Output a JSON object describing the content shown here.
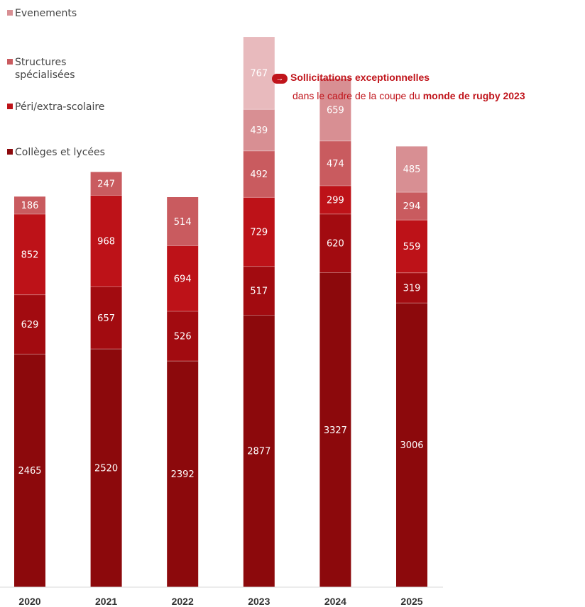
{
  "chart_data": {
    "type": "bar",
    "stacked": true,
    "categories": [
      "2020",
      "2021",
      "2022",
      "2023",
      "2024",
      "2025"
    ],
    "series": [
      {
        "name": "Collèges et lycées",
        "values": [
          2465,
          2520,
          2392,
          2877,
          3327,
          3006
        ],
        "color": "#8c090c"
      },
      {
        "name": "Péri/extra-scolaire",
        "values": [
          629,
          657,
          526,
          517,
          620,
          319
        ],
        "color": "#a20b10"
      },
      {
        "name": "Structures spécialisées",
        "values": [
          852,
          968,
          694,
          729,
          299,
          559
        ],
        "color": "#bd1218"
      },
      {
        "name": "Evenements",
        "values": [
          186,
          247,
          514,
          492,
          474,
          294
        ],
        "color": "#c95b5f"
      },
      {
        "name": "Evenements (2)",
        "values": [
          0,
          0,
          0,
          439,
          659,
          485
        ],
        "color": "#d88f93"
      },
      {
        "name": "Evenements (3)",
        "values": [
          0,
          0,
          0,
          767,
          0,
          0
        ],
        "color": "#e8babd"
      }
    ],
    "ylim": [
      0,
      6000
    ]
  },
  "legend": {
    "evenements": "Evenements",
    "structures_l1": "Structures",
    "structures_l2": "spécialisées",
    "peri": "Péri/extra-scolaire",
    "colleges": "Collèges et lycées",
    "colors": {
      "evenements": "#d88f93",
      "structures": "#c95b5f",
      "peri": "#bd1218",
      "colleges": "#8c090c"
    }
  },
  "annotation": {
    "line1": "Sollicitations exceptionnelles",
    "line2_prefix": "dans le cadre de la coupe du ",
    "line2_bold": "monde de rugby 2023",
    "icon": "arrow-right-icon"
  }
}
